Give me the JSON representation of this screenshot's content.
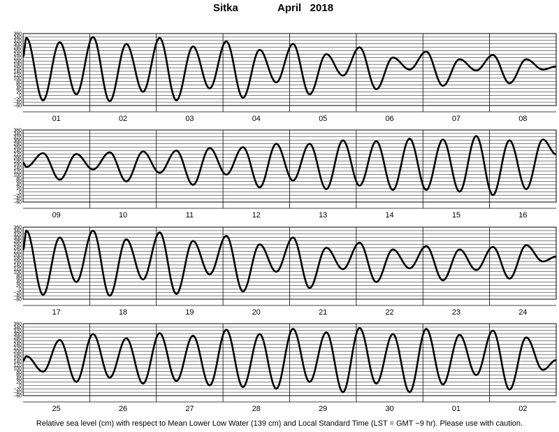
{
  "title": {
    "station": "Sitka",
    "month_year": "April   2018"
  },
  "caption": "Relative sea level (cm) with respect to Mean Lower Low Water (139 cm) and Local Standard Time (LST = GMT −9 hr). Please use with caution.",
  "colors": {
    "curve": "#000000",
    "grid": "#000000",
    "background": "#ffffff"
  },
  "chart_data": {
    "type": "line",
    "title": "Sitka   April 2018",
    "ylabel": "Relative sea level (cm)",
    "ylim": [
      -60,
      360
    ],
    "y_tick_labels": [
      "360",
      "340",
      "320",
      "300",
      "280",
      "260",
      "240",
      "220",
      "200",
      "180",
      "160",
      "140",
      "120",
      "100",
      "80",
      "60",
      "40",
      "20",
      "0",
      "-20",
      "-40",
      "-60"
    ],
    "grid": true,
    "panels": [
      {
        "day_labels": [
          "01",
          "02",
          "03",
          "04",
          "05",
          "06",
          "07",
          "08"
        ],
        "series": [
          {
            "x_days": [
              0.05,
              0.3,
              0.55,
              0.8,
              1.05,
              1.3,
              1.55,
              1.8,
              2.05,
              2.3,
              2.55,
              2.8,
              3.05,
              3.3,
              3.55,
              3.8,
              4.05,
              4.3,
              4.55,
              4.8,
              5.05,
              5.3,
              5.55,
              5.8,
              6.05,
              6.3,
              6.55,
              6.8,
              7.05,
              7.3,
              7.55,
              7.8
            ],
            "values": [
              335,
              -30,
              310,
              5,
              340,
              -35,
              300,
              20,
              335,
              -30,
              285,
              40,
              315,
              -15,
              265,
              75,
              300,
              5,
              240,
              115,
              280,
              35,
              220,
              150,
              255,
              55,
              210,
              145,
              235,
              70,
              210,
              150
            ]
          }
        ]
      },
      {
        "day_labels": [
          "09",
          "10",
          "11",
          "12",
          "13",
          "14",
          "15",
          "16"
        ],
        "series": [
          {
            "x_days": [
              0.05,
              0.3,
              0.55,
              0.8,
              1.05,
              1.3,
              1.55,
              1.8,
              2.05,
              2.3,
              2.55,
              2.8,
              3.05,
              3.3,
              3.55,
              3.8,
              4.05,
              4.3,
              4.55,
              4.8,
              5.05,
              5.3,
              5.55,
              5.8,
              6.05,
              6.3,
              6.55,
              6.8,
              7.05,
              7.3,
              7.55,
              7.8
            ],
            "values": [
              145,
              225,
              70,
              220,
              130,
              230,
              60,
              235,
              110,
              240,
              40,
              255,
              100,
              260,
              25,
              280,
              65,
              280,
              15,
              300,
              35,
              295,
              10,
              310,
              10,
              305,
              0,
              325,
              -20,
              300,
              15,
              305
            ]
          }
        ]
      },
      {
        "day_labels": [
          "17",
          "18",
          "19",
          "20",
          "21",
          "22",
          "23",
          "24"
        ],
        "series": [
          {
            "x_days": [
              0.05,
              0.3,
              0.55,
              0.8,
              1.05,
              1.3,
              1.55,
              1.8,
              2.05,
              2.3,
              2.55,
              2.8,
              3.05,
              3.3,
              3.55,
              3.8,
              4.05,
              4.3,
              4.55,
              4.8,
              5.05,
              5.3,
              5.55,
              5.8,
              6.05,
              6.3,
              6.55,
              6.8,
              7.05,
              7.3,
              7.55,
              7.8
            ],
            "values": [
              340,
              -35,
              300,
              40,
              340,
              -40,
              290,
              55,
              330,
              -30,
              280,
              85,
              310,
              -15,
              260,
              100,
              300,
              5,
              240,
              115,
              270,
              40,
              230,
              120,
              250,
              50,
              230,
              110,
              245,
              60,
              255,
              160
            ]
          }
        ]
      },
      {
        "day_labels": [
          "25",
          "26",
          "27",
          "28",
          "29",
          "30",
          "01",
          "02"
        ],
        "series": [
          {
            "x_days": [
              0.05,
              0.3,
              0.55,
              0.8,
              1.05,
              1.3,
              1.55,
              1.8,
              2.05,
              2.3,
              2.55,
              2.8,
              3.05,
              3.3,
              3.55,
              3.8,
              4.05,
              4.3,
              4.55,
              4.8,
              5.05,
              5.3,
              5.55,
              5.8,
              6.05,
              6.3,
              6.55,
              6.8,
              7.05,
              7.3,
              7.55,
              7.8
            ],
            "values": [
              170,
              80,
              265,
              20,
              300,
              45,
              275,
              10,
              305,
              25,
              290,
              0,
              325,
              -10,
              300,
              -20,
              330,
              20,
              310,
              -40,
              335,
              10,
              300,
              -40,
              330,
              5,
              295,
              60,
              320,
              -25,
              280,
              90
            ]
          }
        ]
      }
    ]
  }
}
